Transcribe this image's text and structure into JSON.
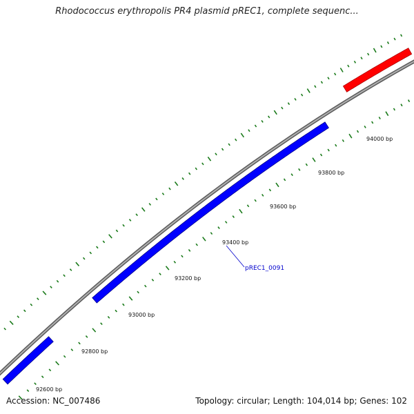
{
  "title": "Rhodococcus erythropolis PR4 plasmid pREC1, complete sequenc...",
  "footer": {
    "accession": "Accession: NC_007486",
    "summary": "Topology: circular; Length: 104,014 bp; Genes: 102"
  },
  "ticks": [
    {
      "label": "92600 bp"
    },
    {
      "label": "92800 bp"
    },
    {
      "label": "93000 bp"
    },
    {
      "label": "93200 bp"
    },
    {
      "label": "93400 bp"
    },
    {
      "label": "93600 bp"
    },
    {
      "label": "93800 bp"
    },
    {
      "label": "94000 bp"
    }
  ],
  "genes": [
    {
      "name": "pREC1_0091",
      "strand": "forward",
      "color": "#0000ff"
    },
    {
      "name": "",
      "strand": "forward",
      "color": "#0000ff"
    },
    {
      "name": "",
      "strand": "reverse",
      "color": "#ff0000"
    }
  ],
  "colors": {
    "backbone": "#808080",
    "tick": "#1a7a1a",
    "forward_gene": "#0000ff",
    "reverse_gene": "#ff0000",
    "gene_label": "#0000cc"
  }
}
